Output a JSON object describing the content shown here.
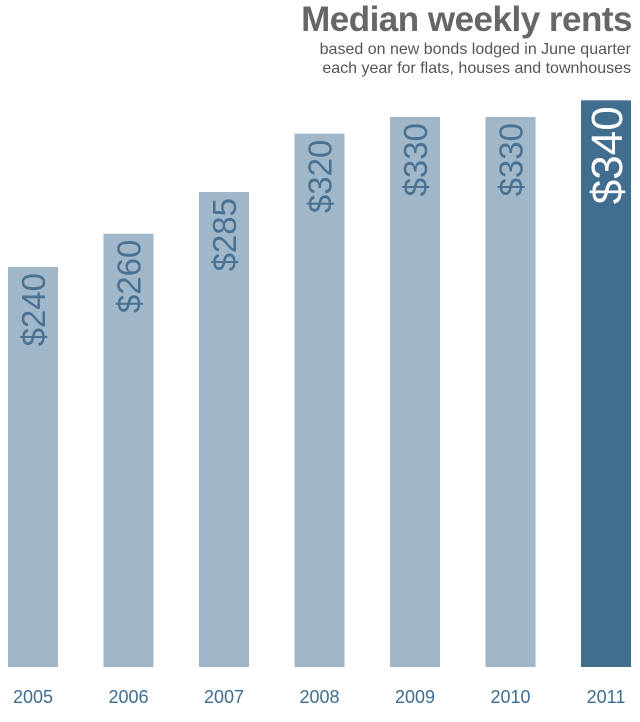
{
  "title": "Median weekly rents",
  "subtitle": {
    "line1": "based on new bonds lodged in June quarter",
    "line2": "each year for flats, houses and townhouses"
  },
  "colors": {
    "bar": "#9fb7c9",
    "highlight_bar": "#416e8e",
    "value_label": "#4a7192",
    "highlight_value_label": "#ffffff",
    "year_label": "#3d6d91"
  },
  "chart_data": {
    "type": "bar",
    "title": "Median weekly rents",
    "subtitle": "based on new bonds lodged in June quarter each year for flats, houses and townhouses",
    "categories": [
      "2005",
      "2006",
      "2007",
      "2008",
      "2009",
      "2010",
      "2011"
    ],
    "values": [
      240,
      260,
      285,
      320,
      330,
      330,
      340
    ],
    "data_labels": [
      "$240",
      "$260",
      "$285",
      "$320",
      "$330",
      "$330",
      "$340"
    ],
    "highlight": "2011",
    "xlabel": "",
    "ylabel": "",
    "grid": false,
    "legend": "none"
  }
}
